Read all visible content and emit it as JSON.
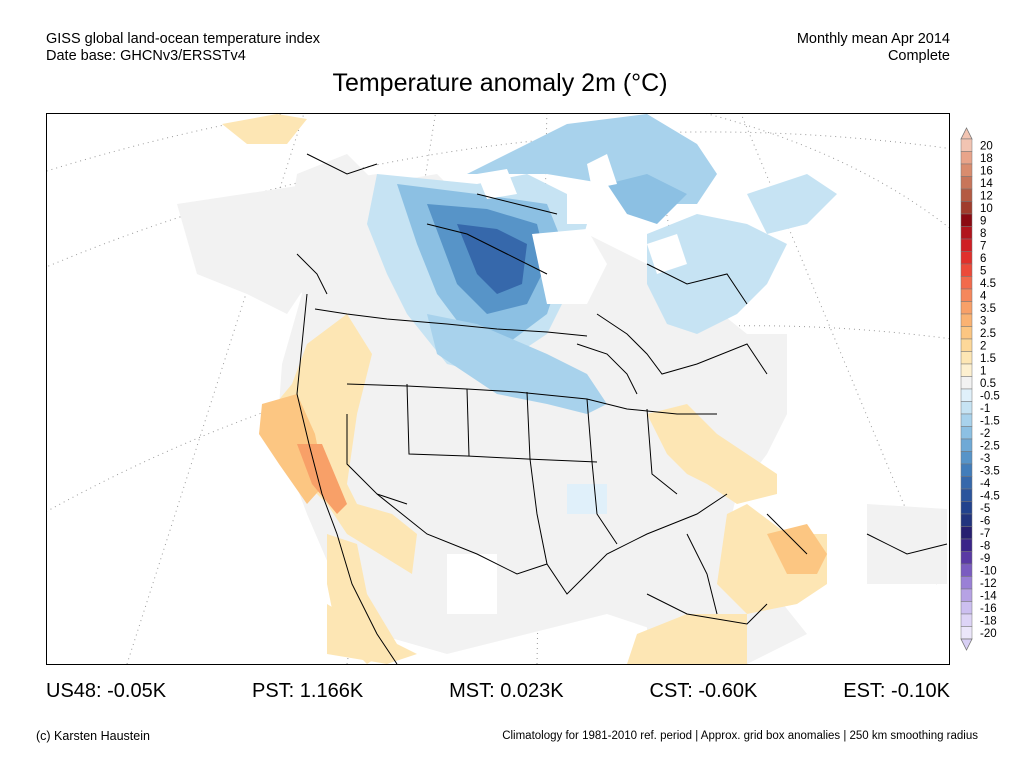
{
  "header": {
    "dataset_line1": "GISS global land-ocean temperature index",
    "dataset_line2": "Date base: GHCNv3/ERSSTv4",
    "period_line1": "Monthly mean Apr 2014",
    "period_line2": "Complete"
  },
  "title": "Temperature anomaly 2m (°C)",
  "colorbar": {
    "ticks": [
      "20",
      "18",
      "16",
      "14",
      "12",
      "10",
      "9",
      "8",
      "7",
      "6",
      "5",
      "4.5",
      "4",
      "3.5",
      "3",
      "2.5",
      "2",
      "1.5",
      "1",
      "0.5",
      "-0.5",
      "-1",
      "-1.5",
      "-2",
      "-2.5",
      "-3",
      "-3.5",
      "-4",
      "-4.5",
      "-5",
      "-6",
      "-7",
      "-8",
      "-9",
      "-10",
      "-12",
      "-14",
      "-16",
      "-18",
      "-20"
    ],
    "colors": [
      "#f2c4b2",
      "#e8a48a",
      "#d98c6e",
      "#c8755a",
      "#b45a42",
      "#a03c2c",
      "#8b0a12",
      "#b1141c",
      "#cf1f24",
      "#e0302c",
      "#ec4a3a",
      "#f26a4c",
      "#f5875c",
      "#f8a068",
      "#fab272",
      "#fcc682",
      "#fdd899",
      "#fde6b4",
      "#fdf0d0",
      "#f2f2f2",
      "#e0f0fa",
      "#c6e3f3",
      "#a8d2ec",
      "#8cc0e3",
      "#6fa9d6",
      "#5794c8",
      "#427dba",
      "#3668ab",
      "#2b549c",
      "#22428d",
      "#22347e",
      "#271f70",
      "#3a2488",
      "#5a3aa4",
      "#7a5cc0",
      "#9a80d6",
      "#b6a2e4",
      "#ccbff0",
      "#ddd4f6",
      "#ebe6fa"
    ],
    "top_cap_color": "#f2c4b2",
    "bottom_cap_color": "#d8d0f4"
  },
  "stats": [
    {
      "label": "US48: -0.05K"
    },
    {
      "label": "PST: 1.166K"
    },
    {
      "label": "MST: 0.023K"
    },
    {
      "label": "CST: -0.60K"
    },
    {
      "label": "EST: -0.10K"
    }
  ],
  "footer": {
    "credit": "(c) Karsten Haustein",
    "note": "Climatology for 1981-2010 ref. period | Approx. grid box anomalies | 250 km smoothing radius"
  },
  "map": {
    "region": "North America",
    "land_color": "#f2f2f2",
    "border_color": "#000000",
    "graticule_color": "#9a9a9a"
  }
}
